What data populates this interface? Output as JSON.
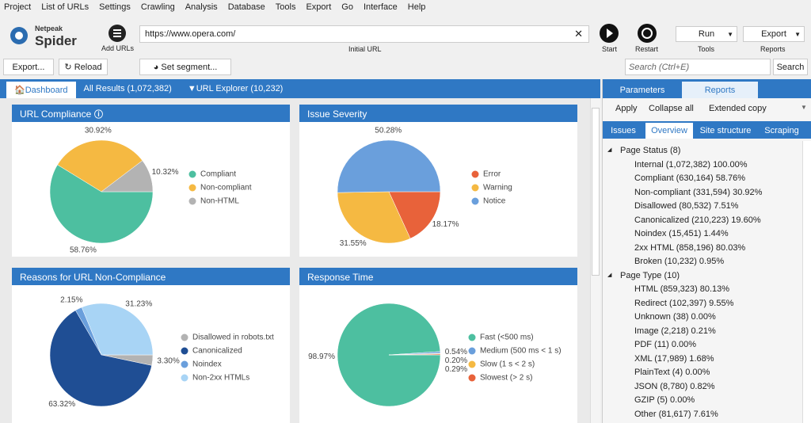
{
  "menu": [
    "Project",
    "List of URLs",
    "Settings",
    "Crawling",
    "Analysis",
    "Database",
    "Tools",
    "Export",
    "Go",
    "Interface",
    "Help"
  ],
  "toolbar": {
    "logo_top": "Netpeak",
    "logo_bottom": "Spider",
    "add_urls": "Add URLs",
    "url": "https://www.opera.com/",
    "url_label": "Initial URL",
    "start": "Start",
    "restart": "Restart",
    "run": "Run",
    "tools": "Tools",
    "export": "Export",
    "reports": "Reports"
  },
  "actions": {
    "export": "Export...",
    "reload": "Reload",
    "segment": "Set segment...",
    "search_placeholder": "Search (Ctrl+E)",
    "search": "Search"
  },
  "tabs": [
    "Dashboard",
    "All Results (1,072,382)",
    "URL Explorer (10,232)"
  ],
  "panels": [
    {
      "title": "URL Compliance",
      "slices": [
        {
          "name": "Compliant",
          "value": 58.76,
          "label": "58.76%",
          "color": "#4dbfa0"
        },
        {
          "name": "Non-compliant",
          "value": 30.92,
          "label": "30.92%",
          "color": "#f5b942"
        },
        {
          "name": "Non-HTML",
          "value": 10.32,
          "label": "10.32%",
          "color": "#b3b3b3"
        }
      ]
    },
    {
      "title": "Issue Severity",
      "slices": [
        {
          "name": "Error",
          "value": 18.17,
          "label": "18.17%",
          "color": "#e8623a"
        },
        {
          "name": "Warning",
          "value": 31.55,
          "label": "31.55%",
          "color": "#f5b942"
        },
        {
          "name": "Notice",
          "value": 50.28,
          "label": "50.28%",
          "color": "#6a9fdc"
        }
      ]
    },
    {
      "title": "Reasons for URL Non-Compliance",
      "slices": [
        {
          "name": "Disallowed in robots.txt",
          "value": 3.3,
          "label": "3.30%",
          "color": "#b3b3b3"
        },
        {
          "name": "Canonicalized",
          "value": 63.32,
          "label": "63.32%",
          "color": "#1f4e94"
        },
        {
          "name": "Noindex",
          "value": 2.15,
          "label": "2.15%",
          "color": "#6a9fdc"
        },
        {
          "name": "Non-2xx HTMLs",
          "value": 31.23,
          "label": "31.23%",
          "color": "#a8d4f5"
        }
      ]
    },
    {
      "title": "Response Time",
      "slices": [
        {
          "name": "Fast (<500 ms)",
          "value": 98.97,
          "label": "98.97%",
          "color": "#4dbfa0"
        },
        {
          "name": "Medium (500 ms < 1 s)",
          "value": 0.54,
          "label": "0.54%",
          "color": "#6a9fdc"
        },
        {
          "name": "Slow (1 s < 2 s)",
          "value": 0.2,
          "label": "0.20%",
          "color": "#f5b942"
        },
        {
          "name": "Slowest (> 2 s)",
          "value": 0.29,
          "label": "0.29%",
          "color": "#e8623a"
        }
      ]
    }
  ],
  "side": {
    "tabs": [
      "Parameters",
      "Reports"
    ],
    "actions": [
      "Apply",
      "Collapse all",
      "Extended copy"
    ],
    "subtabs": [
      "Issues",
      "Overview",
      "Site structure",
      "Scraping"
    ],
    "groups": [
      {
        "title": "Page Status (8)",
        "items": [
          "Internal (1,072,382) 100.00%",
          "Compliant (630,164) 58.76%",
          "Non-compliant (331,594) 30.92%",
          "Disallowed (80,532) 7.51%",
          "Canonicalized (210,223) 19.60%",
          "Noindex (15,451) 1.44%",
          "2xx HTML (858,196) 80.03%",
          "Broken (10,232) 0.95%"
        ]
      },
      {
        "title": "Page Type (10)",
        "items": [
          "HTML (859,323) 80.13%",
          "Redirect (102,397) 9.55%",
          "Unknown (38) 0.00%",
          "Image (2,218) 0.21%",
          "PDF (11) 0.00%",
          "XML (17,989) 1.68%",
          "PlainText (4) 0.00%",
          "JSON (8,780) 0.82%",
          "GZIP (5) 0.00%",
          "Other (81,617) 7.61%"
        ]
      }
    ]
  }
}
